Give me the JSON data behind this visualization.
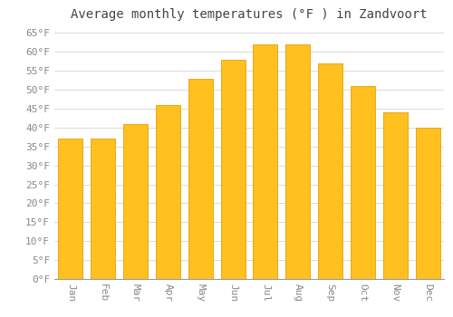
{
  "title": "Average monthly temperatures (°F ) in Zandvoort",
  "months": [
    "Jan",
    "Feb",
    "Mar",
    "Apr",
    "May",
    "Jun",
    "Jul",
    "Aug",
    "Sep",
    "Oct",
    "Nov",
    "Dec"
  ],
  "values": [
    37,
    37,
    41,
    46,
    53,
    58,
    62,
    62,
    57,
    51,
    44,
    40
  ],
  "bar_color": "#FFC020",
  "bar_edge_color": "#E8A000",
  "background_color": "#FFFFFF",
  "grid_color": "#CCCCCC",
  "ylim": [
    0,
    67
  ],
  "yticks": [
    0,
    5,
    10,
    15,
    20,
    25,
    30,
    35,
    40,
    45,
    50,
    55,
    60,
    65
  ],
  "title_fontsize": 10,
  "tick_fontsize": 8,
  "title_color": "#444444",
  "tick_color": "#888888",
  "font_family": "monospace",
  "bar_width": 0.75
}
